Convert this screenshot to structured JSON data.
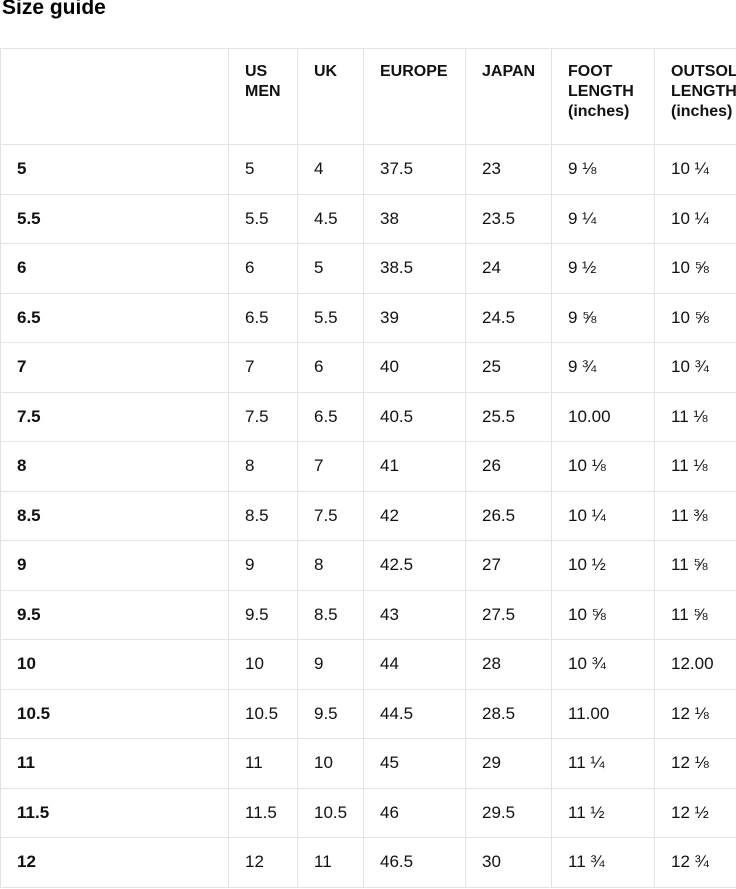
{
  "page": {
    "title": "Size guide"
  },
  "colors": {
    "grid_border": "#e3e3e3",
    "text": "#111111",
    "background": "#ffffff"
  },
  "table": {
    "columns": [
      "",
      "US MEN",
      "UK",
      "EUROPE",
      "JAPAN",
      "FOOT LENGTH (inches)",
      "OUTSOLE LENGTH (inches)"
    ],
    "rows": [
      [
        "5",
        "5",
        "4",
        "37.5",
        "23",
        "9 ⅛",
        "10 ¼"
      ],
      [
        "5.5",
        "5.5",
        "4.5",
        "38",
        "23.5",
        "9 ¼",
        "10 ¼"
      ],
      [
        "6",
        "6",
        "5",
        "38.5",
        "24",
        "9 ½",
        "10 ⅝"
      ],
      [
        "6.5",
        "6.5",
        "5.5",
        "39",
        "24.5",
        "9 ⅝",
        "10 ⅝"
      ],
      [
        "7",
        "7",
        "6",
        "40",
        "25",
        "9 ¾",
        "10 ¾"
      ],
      [
        "7.5",
        "7.5",
        "6.5",
        "40.5",
        "25.5",
        "10.00",
        "11 ⅛"
      ],
      [
        "8",
        "8",
        "7",
        "41",
        "26",
        "10 ⅛",
        "11 ⅛"
      ],
      [
        "8.5",
        "8.5",
        "7.5",
        "42",
        "26.5",
        "10 ¼",
        "11 ⅜"
      ],
      [
        "9",
        "9",
        "8",
        "42.5",
        "27",
        "10 ½",
        "11 ⅝"
      ],
      [
        "9.5",
        "9.5",
        "8.5",
        "43",
        "27.5",
        "10 ⅝",
        "11 ⅝"
      ],
      [
        "10",
        "10",
        "9",
        "44",
        "28",
        "10 ¾",
        "12.00"
      ],
      [
        "10.5",
        "10.5",
        "9.5",
        "44.5",
        "28.5",
        "11.00",
        "12 ⅛"
      ],
      [
        "11",
        "11",
        "10",
        "45",
        "29",
        "11 ¼",
        "12 ⅛"
      ],
      [
        "11.5",
        "11.5",
        "10.5",
        "46",
        "29.5",
        "11 ½",
        "12 ½"
      ],
      [
        "12",
        "12",
        "11",
        "46.5",
        "30",
        "11 ¾",
        "12 ¾"
      ]
    ]
  }
}
